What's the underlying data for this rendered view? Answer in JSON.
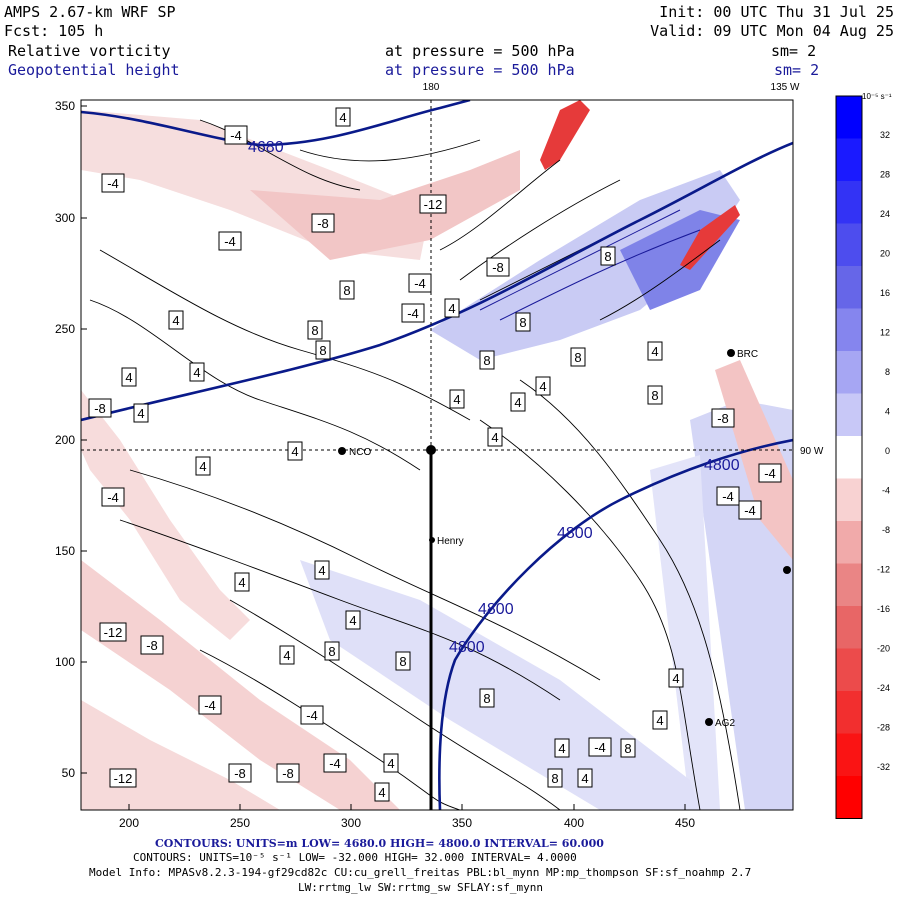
{
  "header": {
    "model": "AMPS 2.67-km WRF SP",
    "forecast": "Fcst:  105 h",
    "init": "Init: 00 UTC Thu 31 Jul 25",
    "valid": "Valid: 09 UTC Mon 04 Aug 25",
    "field1": {
      "name": "Relative vorticity",
      "level": "at pressure =  500 hPa",
      "smooth": "sm= 2"
    },
    "field2": {
      "name": "Geopotential height",
      "level": "at pressure =  500 hPa",
      "smooth": "sm= 2"
    }
  },
  "colorbar": {
    "unit_label": "10⁻⁵ s⁻¹",
    "ticks": [
      "32",
      "28",
      "24",
      "20",
      "16",
      "12",
      "8",
      "4",
      "0",
      "-4",
      "-8",
      "-12",
      "-16",
      "-20",
      "-24",
      "-28",
      "-32"
    ],
    "colors": [
      "#0000ff",
      "#1a1aff",
      "#3333f5",
      "#4d4dee",
      "#6666e8",
      "#8585ee",
      "#a6a6f3",
      "#c8c8f7",
      "#ffffff",
      "#f8d2d2",
      "#f1aaaa",
      "#ea8585",
      "#e86666",
      "#ec4b4b",
      "#f22f2f",
      "#fa1414",
      "#ff0000"
    ]
  },
  "axes": {
    "x_ticks": [
      "200",
      "250",
      "300",
      "350",
      "400",
      "450"
    ],
    "y_ticks": [
      "350",
      "300",
      "250",
      "200",
      "150",
      "100",
      "50"
    ],
    "meridian_labels": {
      "top_180": "180",
      "top_135w": "135 W",
      "right_90w": "90 W"
    }
  },
  "map": {
    "stations": [
      {
        "name": "NCO"
      },
      {
        "name": "Henry"
      },
      {
        "name": "BRC"
      },
      {
        "name": "AG2"
      }
    ],
    "height_contours": [
      {
        "label": "4680"
      },
      {
        "label": "4800"
      },
      {
        "label": "4800"
      },
      {
        "label": "4800"
      },
      {
        "label": "4800"
      }
    ],
    "vorticity_labels": [
      "-4",
      "4",
      "-4",
      "-4",
      "-8",
      "-12",
      "-4",
      "-4",
      "-8",
      "4",
      "4",
      "4",
      "-4",
      "4",
      "8",
      "4",
      "4",
      "8",
      "8",
      "4",
      "4",
      "8",
      "-8",
      "-8",
      "-4",
      "-4",
      "4",
      "4",
      "8",
      "8",
      "4",
      "8",
      "4",
      "-4",
      "-8",
      "-4",
      "-4",
      "-8",
      "-8",
      "4",
      "4",
      "4",
      "4",
      "8",
      "8",
      "4",
      "-4",
      "-4",
      "4",
      "8",
      "4",
      "4",
      "8",
      "8",
      "4",
      "-12",
      "-12",
      "4",
      "8"
    ]
  },
  "footer": {
    "line1": "CONTOURS:  UNITS=m  LOW=   4680.0         HIGH=  4800.0        INTERVAL=   60.000",
    "line2": "CONTOURS:  UNITS=10⁻⁵ s⁻¹  LOW=  -32.000         HIGH=   32.000         INTERVAL=    4.0000",
    "line3": "Model Info: MPASv8.2.3-194-gf29cd82c CU:cu_grell_freitas PBL:bl_mynn MP:mp_thompson SF:sf_noahmp 2.7",
    "line4": "LW:rrtmg_lw SW:rrtmg_sw SFLAY:sf_mynn"
  }
}
